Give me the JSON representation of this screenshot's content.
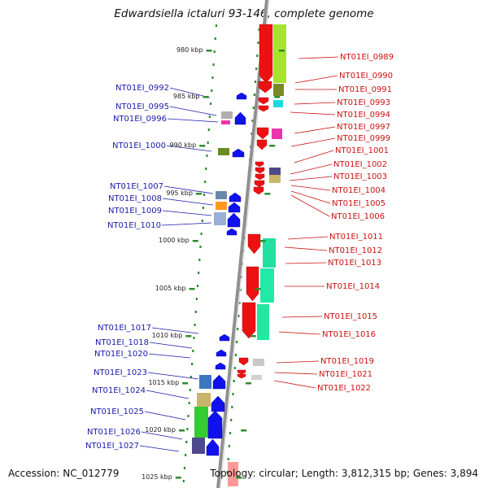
{
  "title": "Edwardsiella ictaluri 93-146, complete genome",
  "accession": "Accession: NC_012779",
  "stats": "Topology: circular; Length: 3,812,315 bp; Genes: 3,894",
  "colors": {
    "backbone": "#909090",
    "tick": "#2e8b2e",
    "left_label": "#1a1aa8",
    "right_label": "#cc1111"
  },
  "scale_labels": [
    {
      "text": "980 kbp"
    },
    {
      "text": "985 kbp"
    },
    {
      "text": "990 kbp"
    },
    {
      "text": "995 kbp"
    },
    {
      "text": "1000 kbp"
    },
    {
      "text": "1005 kbp"
    },
    {
      "text": "1010 kbp"
    },
    {
      "text": "1015 kbp"
    },
    {
      "text": "1020 kbp"
    },
    {
      "text": "1025 kbp"
    }
  ],
  "left_genes": [
    {
      "text": "NT01EI_0992"
    },
    {
      "text": "NT01EI_0995"
    },
    {
      "text": "NT01EI_0996"
    },
    {
      "text": "NT01EI_1000"
    },
    {
      "text": "NT01EI_1007"
    },
    {
      "text": "NT01EI_1008"
    },
    {
      "text": "NT01EI_1009"
    },
    {
      "text": "NT01EI_1010"
    },
    {
      "text": "NT01EI_1017"
    },
    {
      "text": "NT01EI_1018"
    },
    {
      "text": "NT01EI_1020"
    },
    {
      "text": "NT01EI_1023"
    },
    {
      "text": "NT01EI_1024"
    },
    {
      "text": "NT01EI_1025"
    },
    {
      "text": "NT01EI_1026"
    },
    {
      "text": "NT01EI_1027"
    }
  ],
  "right_genes": [
    {
      "text": "NT01EI_0989"
    },
    {
      "text": "NT01EI_0990"
    },
    {
      "text": "NT01EI_0991"
    },
    {
      "text": "NT01EI_0993"
    },
    {
      "text": "NT01EI_0994"
    },
    {
      "text": "NT01EI_0997"
    },
    {
      "text": "NT01EI_0999"
    },
    {
      "text": "NT01EI_1001"
    },
    {
      "text": "NT01EI_1002"
    },
    {
      "text": "NT01EI_1003"
    },
    {
      "text": "NT01EI_1004"
    },
    {
      "text": "NT01EI_1005"
    },
    {
      "text": "NT01EI_1006"
    },
    {
      "text": "NT01EI_1011"
    },
    {
      "text": "NT01EI_1012"
    },
    {
      "text": "NT01EI_1013"
    },
    {
      "text": "NT01EI_1014"
    },
    {
      "text": "NT01EI_1015"
    },
    {
      "text": "NT01EI_1016"
    },
    {
      "text": "NT01EI_1019"
    },
    {
      "text": "NT01EI_1021"
    },
    {
      "text": "NT01EI_1022"
    }
  ]
}
